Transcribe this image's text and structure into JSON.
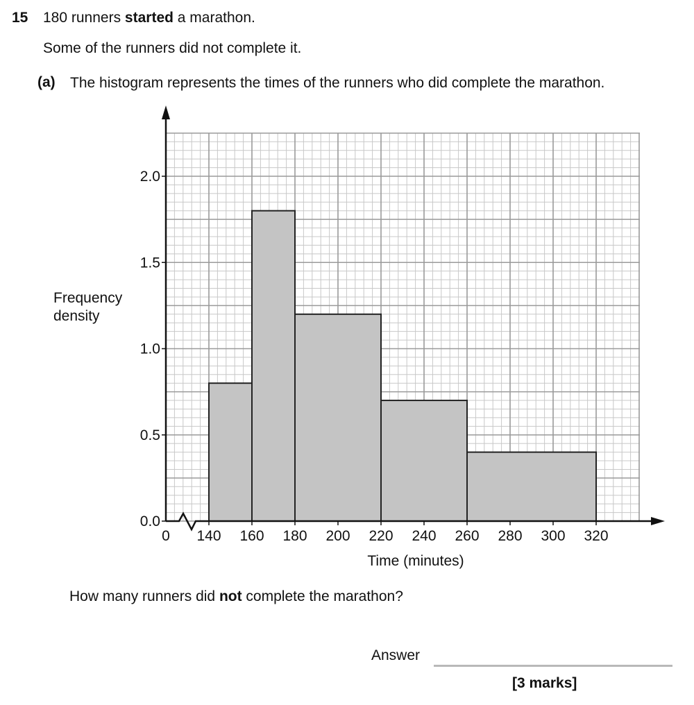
{
  "question": {
    "number": "15",
    "line1_pre": "180 runners ",
    "line1_bold": "started",
    "line1_post": " a marathon.",
    "line2": "Some of the runners did not complete it.",
    "part_label": "(a)",
    "part_text": "The histogram represents the times of the runners who did complete the marathon.",
    "prompt_pre": "How many runners did ",
    "prompt_bold": "not",
    "prompt_post": " complete the marathon?",
    "answer_label": "Answer",
    "answer_value": "",
    "marks": "[3 marks]"
  },
  "chart_data": {
    "type": "bar",
    "subtype": "histogram",
    "title": "",
    "xlabel": "Time (minutes)",
    "ylabel": "Frequency density",
    "bins": [
      {
        "start": 140,
        "end": 160,
        "frequency_density": 0.8
      },
      {
        "start": 160,
        "end": 180,
        "frequency_density": 1.8
      },
      {
        "start": 180,
        "end": 220,
        "frequency_density": 1.2
      },
      {
        "start": 220,
        "end": 260,
        "frequency_density": 0.7
      },
      {
        "start": 260,
        "end": 320,
        "frequency_density": 0.4
      }
    ],
    "categories": [
      "140-160",
      "160-180",
      "180-220",
      "220-260",
      "260-320"
    ],
    "values": [
      0.8,
      1.8,
      1.2,
      0.7,
      0.4
    ],
    "x_ticks": [
      "0",
      "140",
      "160",
      "180",
      "200",
      "220",
      "240",
      "260",
      "280",
      "300",
      "320"
    ],
    "y_ticks": [
      "0.0",
      "0.5",
      "1.0",
      "1.5",
      "2.0"
    ],
    "xlim": [
      120,
      340
    ],
    "ylim": [
      0,
      2.25
    ],
    "axis_break": "x-axis broken between 0 and 140",
    "grid": true,
    "legend": null,
    "bar_color": "#c4c4c4",
    "grid_color_major": "#9a9a9a",
    "grid_color_minor": "#c8c8c8"
  }
}
